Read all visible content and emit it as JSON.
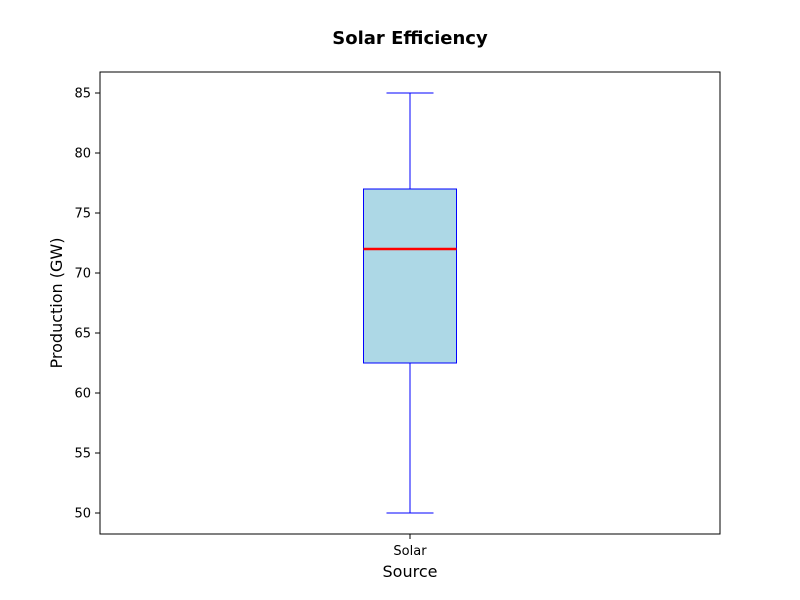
{
  "chart_data": {
    "type": "box",
    "title": "Solar Efficiency",
    "xlabel": "Source",
    "ylabel": "Production (GW)",
    "ylim": [
      48.25,
      86.75
    ],
    "yticks": [
      50,
      55,
      60,
      65,
      70,
      75,
      80,
      85
    ],
    "categories": [
      "Solar"
    ],
    "series": [
      {
        "name": "Solar",
        "min": 50,
        "q1": 62.5,
        "median": 72,
        "q3": 77,
        "max": 85
      }
    ],
    "colors": {
      "box_fill": "#add8e6",
      "box_edge": "#0000ff",
      "median": "#ff0000",
      "whisker": "#0000ff"
    }
  }
}
